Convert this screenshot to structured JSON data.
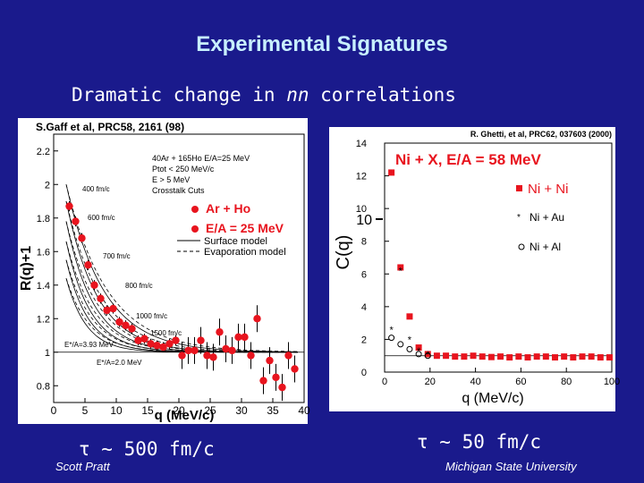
{
  "slide": {
    "title": "Experimental Signatures",
    "subtitle_prefix": "Dramatic change in ",
    "subtitle_italic": "nn",
    "subtitle_suffix": " correlations",
    "tau_left": "τ ~ 500 fm/c",
    "tau_right": "τ ~ 50 fm/c",
    "footer_left": "Scott Pratt",
    "footer_right": "Michigan State University",
    "colors": {
      "background": "#1a1a8c",
      "title": "#c8f0ff",
      "marker": "#e8141e"
    }
  },
  "chart_data": [
    {
      "type": "scatter",
      "reference": "S.Gaff et al, PRC58, 2161 (98)",
      "xlabel": "q (MeV/c)",
      "ylabel": "R(q)+1",
      "xlim": [
        0,
        40
      ],
      "ylim": [
        0.7,
        2.3
      ],
      "xticks": [
        0,
        5,
        10,
        15,
        20,
        25,
        30,
        35,
        40
      ],
      "yticks": [
        0.8,
        1,
        1.2,
        1.4,
        1.6,
        1.8,
        2,
        2.2
      ],
      "info_lines": [
        "40Ar + 165Ho E/A=25 MeV",
        "Ptot < 250 MeV/c",
        "E > 5 MeV",
        "Crosstalk Cuts"
      ],
      "legend_title": "Ar + Ho",
      "legend_subtitle": "E/A = 25 MeV",
      "legend_lines": [
        "Surface model",
        "Evaporation model"
      ],
      "annotations": [
        "400 fm/c",
        "600 fm/c",
        "700 fm/c",
        "800 fm/c",
        "1000 fm/c",
        "1500 fm/c",
        "E*/A=3.93 MeV",
        "E*/A=2.0 MeV"
      ],
      "series": [
        {
          "name": "Ar + Ho",
          "x": [
            2.5,
            3.5,
            4.5,
            5.5,
            6.5,
            7.5,
            8.5,
            9.5,
            10.5,
            11.5,
            12.5,
            13.5,
            14.5,
            15.5,
            16.5,
            17.5,
            18.5,
            19.5,
            20.5,
            21.5,
            22.5,
            23.5,
            24.5,
            25.5,
            26.5,
            27.5,
            28.5,
            29.5,
            30.5,
            31.5,
            32.5,
            33.5,
            34.5,
            35.5,
            36.5,
            37.5,
            38.5
          ],
          "y": [
            1.87,
            1.78,
            1.68,
            1.52,
            1.4,
            1.32,
            1.25,
            1.26,
            1.18,
            1.16,
            1.14,
            1.07,
            1.08,
            1.05,
            1.04,
            1.03,
            1.05,
            1.07,
            0.98,
            1.01,
            1.01,
            1.07,
            0.98,
            0.97,
            1.12,
            1.02,
            1.01,
            1.09,
            1.09,
            0.98,
            1.2,
            0.83,
            0.95,
            0.85,
            0.79,
            0.98,
            0.9
          ]
        }
      ]
    },
    {
      "type": "scatter",
      "reference": "R. Ghetti, et al, PRC62, 037603 (2000)",
      "title": "Ni + X, E/A = 58 MeV",
      "xlabel": "q (MeV/c)",
      "ylabel": "C(q)",
      "xlim": [
        0,
        100
      ],
      "ylim": [
        0,
        14
      ],
      "xticks": [
        0,
        20,
        40,
        60,
        80,
        100
      ],
      "yticks": [
        0,
        2,
        4,
        6,
        8,
        10,
        12,
        14
      ],
      "ytick_label_10": "10",
      "legend": [
        "Ni + Ni",
        "Ni + Au",
        "Ni + Al"
      ],
      "series": [
        {
          "name": "Ni + Ni",
          "x": [
            3,
            7,
            11,
            15,
            19,
            23,
            27,
            31,
            35,
            39,
            43,
            47,
            51,
            55,
            59,
            63,
            67,
            71,
            75,
            79,
            83,
            87,
            91,
            95,
            99
          ],
          "y": [
            12.2,
            6.4,
            3.4,
            1.5,
            1.1,
            1.0,
            1.0,
            0.95,
            0.95,
            1.0,
            0.95,
            0.92,
            0.95,
            0.9,
            0.95,
            0.9,
            0.95,
            0.95,
            0.9,
            0.95,
            0.9,
            0.95,
            0.95,
            0.9,
            0.9
          ]
        },
        {
          "name": "Ni + Au",
          "x": [
            3,
            7,
            11,
            15,
            19
          ],
          "y": [
            2.6,
            6.2,
            2.0,
            1.3,
            1.1
          ]
        },
        {
          "name": "Ni + Al",
          "x": [
            3,
            7,
            11,
            15,
            19
          ],
          "y": [
            2.1,
            1.7,
            1.4,
            1.1,
            1.0
          ]
        }
      ]
    }
  ]
}
